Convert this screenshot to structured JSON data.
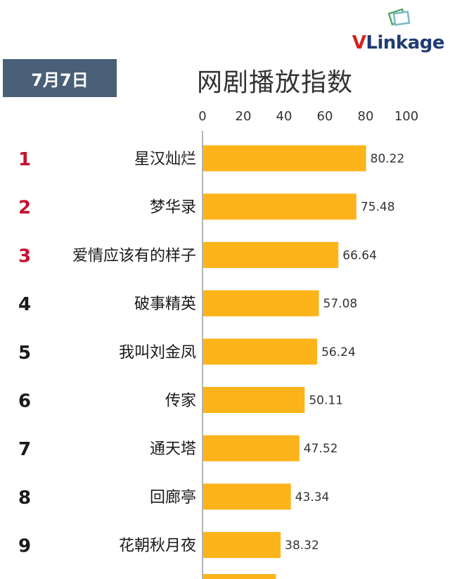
{
  "logo": {
    "v": "V",
    "rest": "Linkage"
  },
  "date_label": "7月7日",
  "colors": {
    "bar": "#fdb31a",
    "rank_top": "#c8102e",
    "rank_other": "#1a1a1a",
    "badge": "#4a6078"
  },
  "chart_data": {
    "type": "bar",
    "orientation": "horizontal",
    "title": "网剧播放指数",
    "xlim": [
      0,
      100
    ],
    "ticks": [
      0,
      20,
      40,
      60,
      80,
      100
    ],
    "ranks": [
      "1",
      "2",
      "3",
      "4",
      "5",
      "6",
      "7",
      "8",
      "9"
    ],
    "categories": [
      "星汉灿烂",
      "梦华录",
      "爱情应该有的样子",
      "破事精英",
      "我叫刘金凤",
      "传家",
      "通天塔",
      "回廊亭",
      "花朝秋月夜"
    ],
    "values": [
      80.22,
      75.48,
      66.64,
      57.08,
      56.24,
      50.11,
      47.52,
      43.34,
      38.32
    ],
    "value_labels": [
      "80.22",
      "75.48",
      "66.64",
      "57.08",
      "56.24",
      "50.11",
      "47.52",
      "43.34",
      "38.32"
    ],
    "grid": false,
    "legend": "none"
  }
}
